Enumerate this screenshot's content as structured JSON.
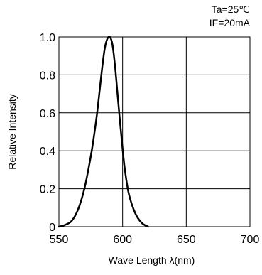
{
  "chart_data": {
    "type": "line",
    "title": "",
    "annotations": [
      "Ta=25℃",
      "IF=20mA"
    ],
    "xlabel": "Wave Length  λ(nm)",
    "ylabel": "Relative Intensity",
    "xlim": [
      550,
      700
    ],
    "ylim": [
      0,
      1.0
    ],
    "x_ticks": [
      550,
      600,
      650,
      700
    ],
    "x_tick_labels": [
      "550",
      "600",
      "650",
      "700"
    ],
    "y_ticks": [
      0,
      0.2,
      0.4,
      0.6,
      0.8,
      1.0
    ],
    "y_tick_labels": [
      "0",
      "0.2",
      "0.4",
      "0.6",
      "0.8",
      "1.0"
    ],
    "grid": true,
    "legend": "none",
    "series": [
      {
        "color": "#000000",
        "x": [
          550,
          555,
          560,
          565,
          570,
          575,
          578,
          580,
          582,
          584,
          586,
          588,
          590,
          592,
          594,
          596,
          598,
          600,
          602,
          605,
          610,
          615,
          620
        ],
        "y": [
          0.0,
          0.01,
          0.03,
          0.09,
          0.2,
          0.37,
          0.5,
          0.6,
          0.72,
          0.84,
          0.94,
          0.99,
          1.0,
          0.96,
          0.85,
          0.7,
          0.55,
          0.41,
          0.29,
          0.17,
          0.07,
          0.02,
          0.0
        ]
      }
    ]
  }
}
